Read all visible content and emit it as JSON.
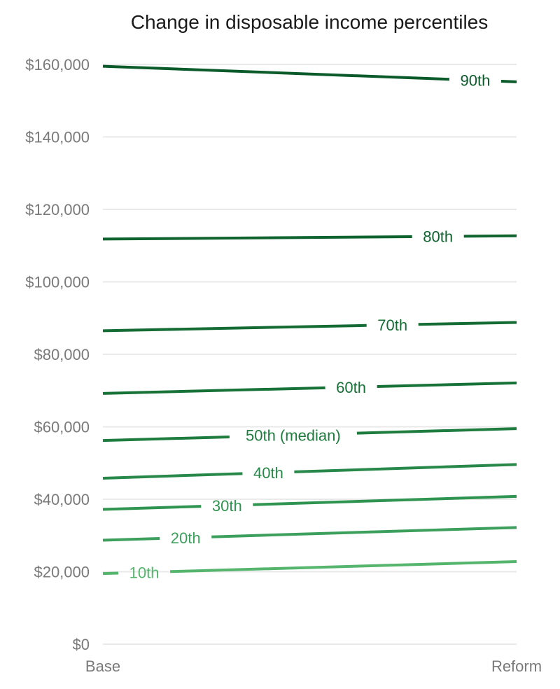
{
  "chart_data": {
    "type": "line",
    "title": "Change in disposable income percentiles",
    "xlabel": "",
    "ylabel": "",
    "categories": [
      "Base",
      "Reform"
    ],
    "ylim": [
      0,
      160000
    ],
    "yticks": [
      0,
      20000,
      40000,
      60000,
      80000,
      100000,
      120000,
      140000,
      160000
    ],
    "ytick_labels": [
      "$0",
      "$20,000",
      "$40,000",
      "$60,000",
      "$80,000",
      "$100,000",
      "$120,000",
      "$140,000",
      "$160,000"
    ],
    "grid": true,
    "series": [
      {
        "name": "90th",
        "values": [
          159500,
          155200
        ],
        "color": "#0b5a2a",
        "label_pos": 0.9
      },
      {
        "name": "80th",
        "values": [
          111800,
          112700
        ],
        "color": "#0e632f",
        "label_pos": 0.81
      },
      {
        "name": "70th",
        "values": [
          86500,
          88800
        ],
        "color": "#146c34",
        "label_pos": 0.7
      },
      {
        "name": "60th",
        "values": [
          69200,
          72100
        ],
        "color": "#177238",
        "label_pos": 0.6
      },
      {
        "name": "50th (median)",
        "values": [
          56200,
          59500
        ],
        "color": "#1e7c3e",
        "label_pos": 0.46
      },
      {
        "name": "40th",
        "values": [
          45800,
          49600
        ],
        "color": "#27884a",
        "label_pos": 0.4
      },
      {
        "name": "30th",
        "values": [
          37200,
          40800
        ],
        "color": "#2e9450",
        "label_pos": 0.3
      },
      {
        "name": "20th",
        "values": [
          28700,
          32200
        ],
        "color": "#3ca05c",
        "label_pos": 0.2
      },
      {
        "name": "10th",
        "values": [
          19500,
          22800
        ],
        "color": "#55b56c",
        "label_pos": 0.1
      }
    ]
  }
}
